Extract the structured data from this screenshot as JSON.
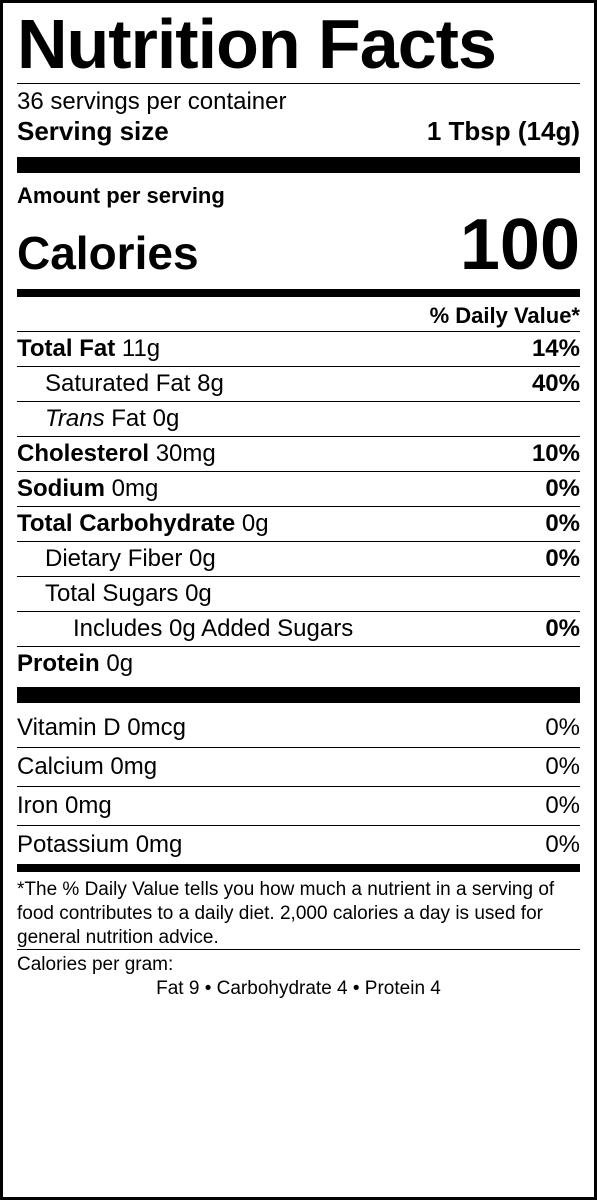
{
  "title": "Nutrition Facts",
  "servings_per_container": "36 servings per container",
  "serving_size_label": "Serving size",
  "serving_size_value": "1 Tbsp (14g)",
  "amount_per_serving": "Amount per serving",
  "calories_label": "Calories",
  "calories_value": "100",
  "dv_header": "% Daily Value*",
  "rows": {
    "total_fat": {
      "name": "Total Fat",
      "amt": "11g",
      "dv": "14%"
    },
    "sat_fat": {
      "name": "Saturated Fat",
      "amt": "8g",
      "dv": "40%"
    },
    "trans_fat": {
      "prefix": "Trans",
      "suffix": " Fat 0g"
    },
    "chol": {
      "name": "Cholesterol",
      "amt": "30mg",
      "dv": "10%"
    },
    "sodium": {
      "name": "Sodium",
      "amt": "0mg",
      "dv": "0%"
    },
    "carb": {
      "name": "Total Carbohydrate",
      "amt": "0g",
      "dv": "0%"
    },
    "fiber": {
      "name": "Dietary Fiber",
      "amt": "0g",
      "dv": "0%"
    },
    "sugars": {
      "name": "Total Sugars",
      "amt": "0g"
    },
    "added": {
      "text": "Includes 0g Added Sugars",
      "dv": "0%"
    },
    "protein": {
      "name": "Protein",
      "amt": "0g"
    }
  },
  "vitamins": {
    "vitd": {
      "name": "Vitamin D 0mcg",
      "dv": "0%"
    },
    "calc": {
      "name": "Calcium 0mg",
      "dv": "0%"
    },
    "iron": {
      "name": "Iron 0mg",
      "dv": "0%"
    },
    "pota": {
      "name": "Potassium 0mg",
      "dv": "0%"
    }
  },
  "footnote": "*The % Daily Value tells you how much a nutrient in a serving of food contributes to a daily diet. 2,000 calories a day is used for general nutrition advice.",
  "cpg_label": "Calories per gram:",
  "cpg_values": "Fat 9   •   Carbohydrate 4   •   Protein 4"
}
